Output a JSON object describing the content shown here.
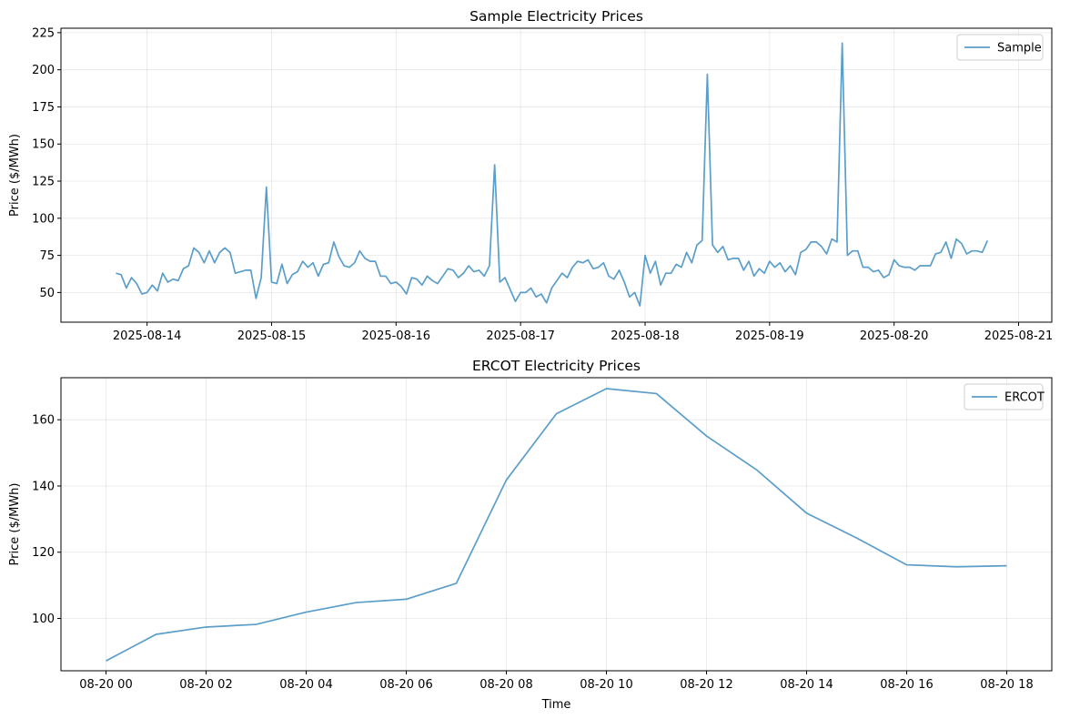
{
  "chart_data": [
    {
      "type": "line",
      "title": "Sample Electricity Prices",
      "xlabel": "",
      "ylabel": "Price ($/MWh)",
      "ylim": [
        30,
        228
      ],
      "yticks": [
        50,
        75,
        100,
        125,
        150,
        175,
        200,
        225
      ],
      "xlim_hours": [
        -16.6,
        174.4
      ],
      "xticks": [
        {
          "hour": 0,
          "label": "2025-08-14"
        },
        {
          "hour": 24,
          "label": "2025-08-15"
        },
        {
          "hour": 48,
          "label": "2025-08-16"
        },
        {
          "hour": 72,
          "label": "2025-08-17"
        },
        {
          "hour": 96,
          "label": "2025-08-18"
        },
        {
          "hour": 120,
          "label": "2025-08-19"
        },
        {
          "hour": 144,
          "label": "2025-08-20"
        },
        {
          "hour": 168,
          "label": "2025-08-21"
        }
      ],
      "grid": true,
      "legend": "top-right",
      "color": "#5a9ec9",
      "series": [
        {
          "name": "Sample",
          "x_start_hour": -6,
          "x_step_hours": 1,
          "values": [
            63,
            62,
            53,
            60,
            56,
            49,
            50,
            55,
            51,
            63,
            57,
            59,
            58,
            66,
            68,
            80,
            77,
            70,
            78,
            70,
            77,
            80,
            77,
            63,
            64,
            65,
            65,
            46,
            60,
            121,
            57,
            56,
            69,
            56,
            62,
            64,
            71,
            67,
            70,
            61,
            69,
            70,
            84,
            74,
            68,
            67,
            70,
            78,
            73,
            71,
            71,
            61,
            61,
            56,
            57,
            54,
            49,
            60,
            59,
            55,
            61,
            58,
            56,
            61,
            66,
            65,
            60,
            63,
            68,
            64,
            65,
            61,
            68,
            136,
            57,
            60,
            52,
            44,
            50,
            50,
            53,
            47,
            49,
            43,
            53,
            58,
            63,
            60,
            67,
            71,
            70,
            72,
            66,
            67,
            70,
            61,
            59,
            65,
            57,
            47,
            50,
            41,
            75,
            63,
            71,
            55,
            63,
            63,
            69,
            67,
            77,
            70,
            82,
            85,
            197,
            82,
            77,
            81,
            72,
            73,
            73,
            65,
            71,
            61,
            66,
            63,
            71,
            67,
            70,
            64,
            68,
            62,
            77,
            79,
            84,
            84,
            81,
            76,
            86,
            84,
            218,
            75,
            78,
            78,
            67,
            67,
            64,
            65,
            60,
            62,
            72,
            68,
            67,
            67,
            65,
            68,
            68,
            68,
            76,
            77,
            84,
            73,
            86,
            83,
            76,
            78,
            78,
            77,
            85
          ]
        }
      ]
    },
    {
      "type": "line",
      "title": "ERCOT Electricity Prices",
      "xlabel": "Time",
      "ylabel": "Price ($/MWh)",
      "ylim": [
        84.2,
        172.7
      ],
      "yticks": [
        100,
        120,
        140,
        160
      ],
      "xlim_hours": [
        -0.9,
        18.9
      ],
      "xticks": [
        {
          "hour": 0,
          "label": "08-20 00"
        },
        {
          "hour": 2,
          "label": "08-20 02"
        },
        {
          "hour": 4,
          "label": "08-20 04"
        },
        {
          "hour": 6,
          "label": "08-20 06"
        },
        {
          "hour": 8,
          "label": "08-20 08"
        },
        {
          "hour": 10,
          "label": "08-20 10"
        },
        {
          "hour": 12,
          "label": "08-20 12"
        },
        {
          "hour": 14,
          "label": "08-20 14"
        },
        {
          "hour": 16,
          "label": "08-20 16"
        },
        {
          "hour": 18,
          "label": "08-20 18"
        }
      ],
      "grid": true,
      "legend": "top-right",
      "color": "#5a9ec9",
      "series": [
        {
          "name": "ERCOT",
          "x_start_hour": 0,
          "x_step_hours": 1,
          "values": [
            87.2,
            95.2,
            97.4,
            98.2,
            101.9,
            104.8,
            105.8,
            110.6,
            141.8,
            161.8,
            169.4,
            167.9,
            155.1,
            144.9,
            131.8,
            124.3,
            116.2,
            115.6,
            115.9
          ]
        }
      ]
    }
  ]
}
